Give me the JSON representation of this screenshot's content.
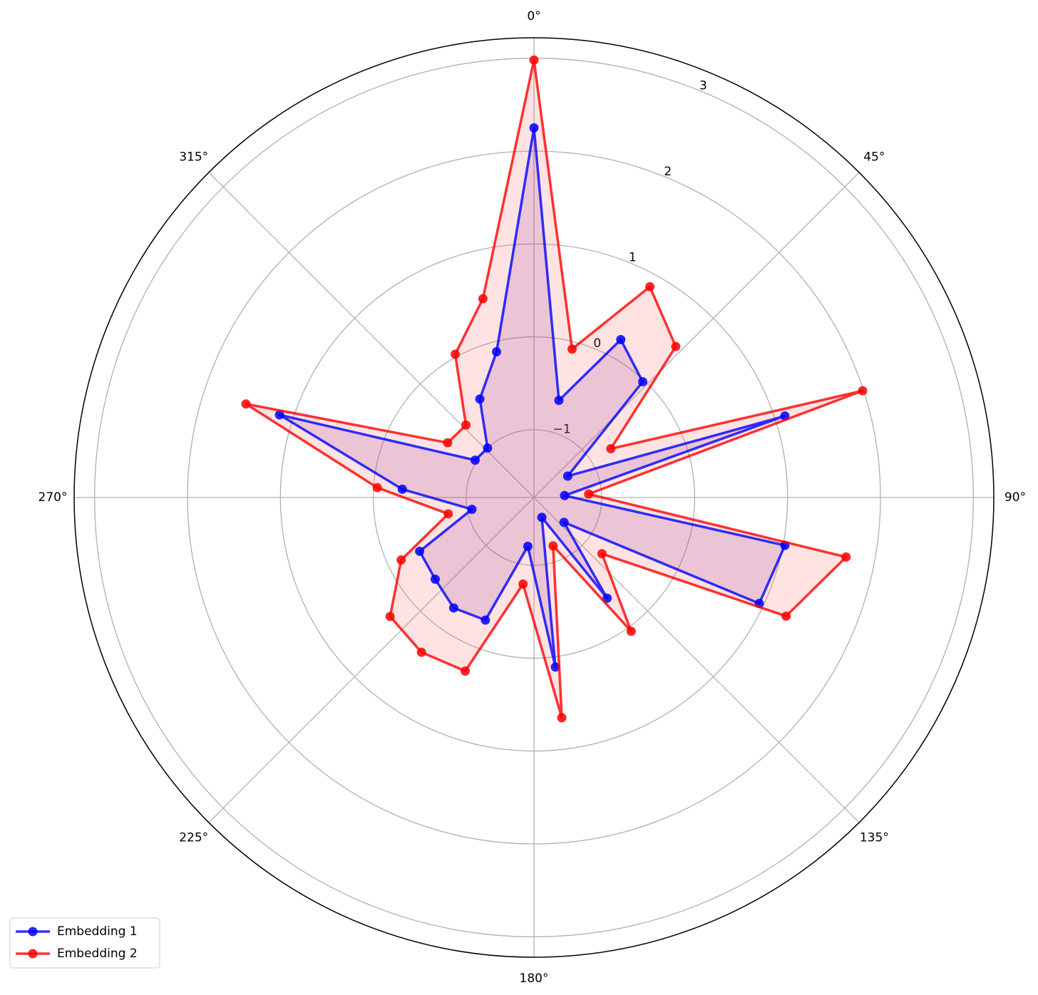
{
  "chart_data": {
    "type": "radar",
    "x": [
      0,
      14.4,
      28.8,
      43.2,
      57.6,
      72,
      86.4,
      100.8,
      115.2,
      129.6,
      144,
      158.4,
      172.8,
      187.2,
      201.6,
      216,
      230.4,
      244.8,
      259.2,
      273.6,
      288,
      302.4,
      316.8,
      331.2,
      345.6
    ],
    "series": [
      {
        "name": "Embedding 1",
        "color": "#0000ff",
        "fill_color": "#7b2ea0",
        "values": [
          2.25,
          -0.65,
          0.21,
          -0.02,
          -1.3,
          1.11,
          -1.4,
          1.02,
          0.95,
          -1.31,
          -0.39,
          -1.5,
          0.11,
          -1.2,
          -0.31,
          -0.26,
          -0.35,
          -0.37,
          -1.05,
          -0.31,
          1.15,
          -0.98,
          -1.0,
          -0.52,
          -0.11
        ]
      },
      {
        "name": "Embedding 2",
        "color": "#ff0000",
        "fill_color": "#ff6666",
        "values": [
          2.98,
          -0.08,
          0.86,
          0.5,
          -0.75,
          1.99,
          -1.14,
          1.69,
          1.27,
          -0.78,
          0.05,
          -1.17,
          0.66,
          -0.79,
          0.28,
          0.33,
          0.28,
          -0.15,
          -0.79,
          -0.04,
          1.53,
          -0.63,
          -0.66,
          0.03,
          0.48
        ]
      }
    ],
    "xlim": [
      0,
      360
    ],
    "xticks": [
      {
        "value": 0,
        "label": "0°"
      },
      {
        "value": 45,
        "label": "45°"
      },
      {
        "value": 90,
        "label": "90°"
      },
      {
        "value": 135,
        "label": "135°"
      },
      {
        "value": 180,
        "label": "180°"
      },
      {
        "value": 225,
        "label": "225°"
      },
      {
        "value": 270,
        "label": "270°"
      },
      {
        "value": 315,
        "label": "315°"
      }
    ],
    "ylim": [
      -1.73,
      3.22
    ],
    "yticks": [
      {
        "value": -1,
        "label": "−1"
      },
      0,
      1,
      2,
      3
    ],
    "grid": true,
    "legend": "lower left"
  }
}
